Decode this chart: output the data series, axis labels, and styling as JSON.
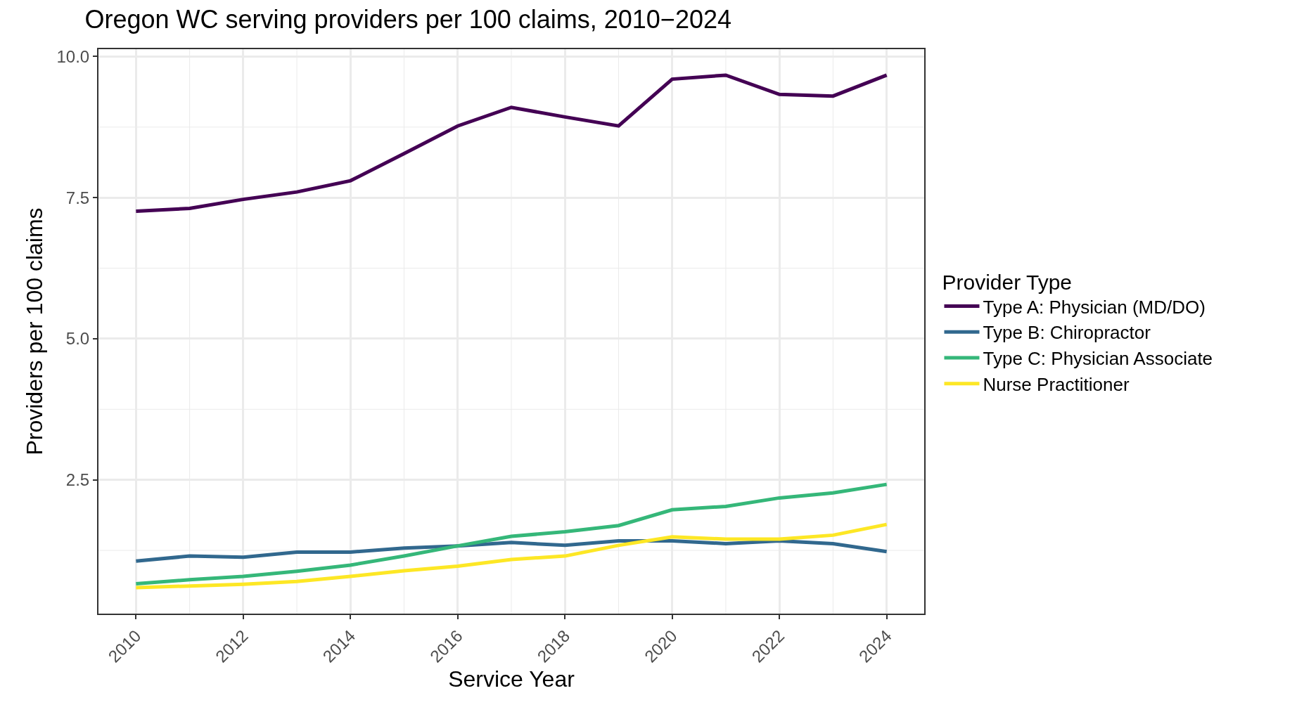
{
  "chart_data": {
    "type": "line",
    "title": "Oregon WC serving providers per 100 claims, 2010−2024",
    "xlabel": "Service Year",
    "ylabel": "Providers per 100 claims",
    "legend_title": "Provider Type",
    "x": [
      2010,
      2011,
      2012,
      2013,
      2014,
      2015,
      2016,
      2017,
      2018,
      2019,
      2020,
      2021,
      2022,
      2023,
      2024
    ],
    "series": [
      {
        "name": "Type A: Physician (MD/DO)",
        "color": "#440154",
        "values": [
          7.26,
          7.31,
          7.47,
          7.6,
          7.8,
          8.28,
          8.77,
          9.1,
          8.93,
          8.77,
          9.6,
          9.67,
          9.33,
          9.3,
          9.67
        ]
      },
      {
        "name": "Type B: Chiropractor",
        "color": "#31688e",
        "values": [
          1.06,
          1.15,
          1.13,
          1.22,
          1.22,
          1.29,
          1.33,
          1.39,
          1.34,
          1.42,
          1.42,
          1.37,
          1.42,
          1.37,
          1.23
        ]
      },
      {
        "name": "Type C: Physician Associate",
        "color": "#35b779",
        "values": [
          0.66,
          0.73,
          0.79,
          0.88,
          0.99,
          1.15,
          1.33,
          1.5,
          1.58,
          1.69,
          1.97,
          2.03,
          2.18,
          2.27,
          2.42
        ]
      },
      {
        "name": "Nurse Practitioner",
        "color": "#fde725",
        "values": [
          0.59,
          0.62,
          0.65,
          0.7,
          0.79,
          0.89,
          0.97,
          1.09,
          1.15,
          1.34,
          1.49,
          1.45,
          1.45,
          1.52,
          1.71
        ]
      }
    ],
    "xlim": [
      2009.3,
      2024.7
    ],
    "xticks": [
      2010,
      2012,
      2014,
      2016,
      2018,
      2020,
      2022,
      2024
    ],
    "ylim": [
      0.13,
      10.13
    ],
    "yticks": [
      {
        "value": 2.5,
        "label": "2.5"
      },
      {
        "value": 5,
        "label": "5.0"
      },
      {
        "value": 7.5,
        "label": "7.5"
      },
      {
        "value": 10,
        "label": "10.0"
      }
    ],
    "grid": true,
    "legend": "right",
    "line_style": "solid",
    "marker": "none"
  }
}
